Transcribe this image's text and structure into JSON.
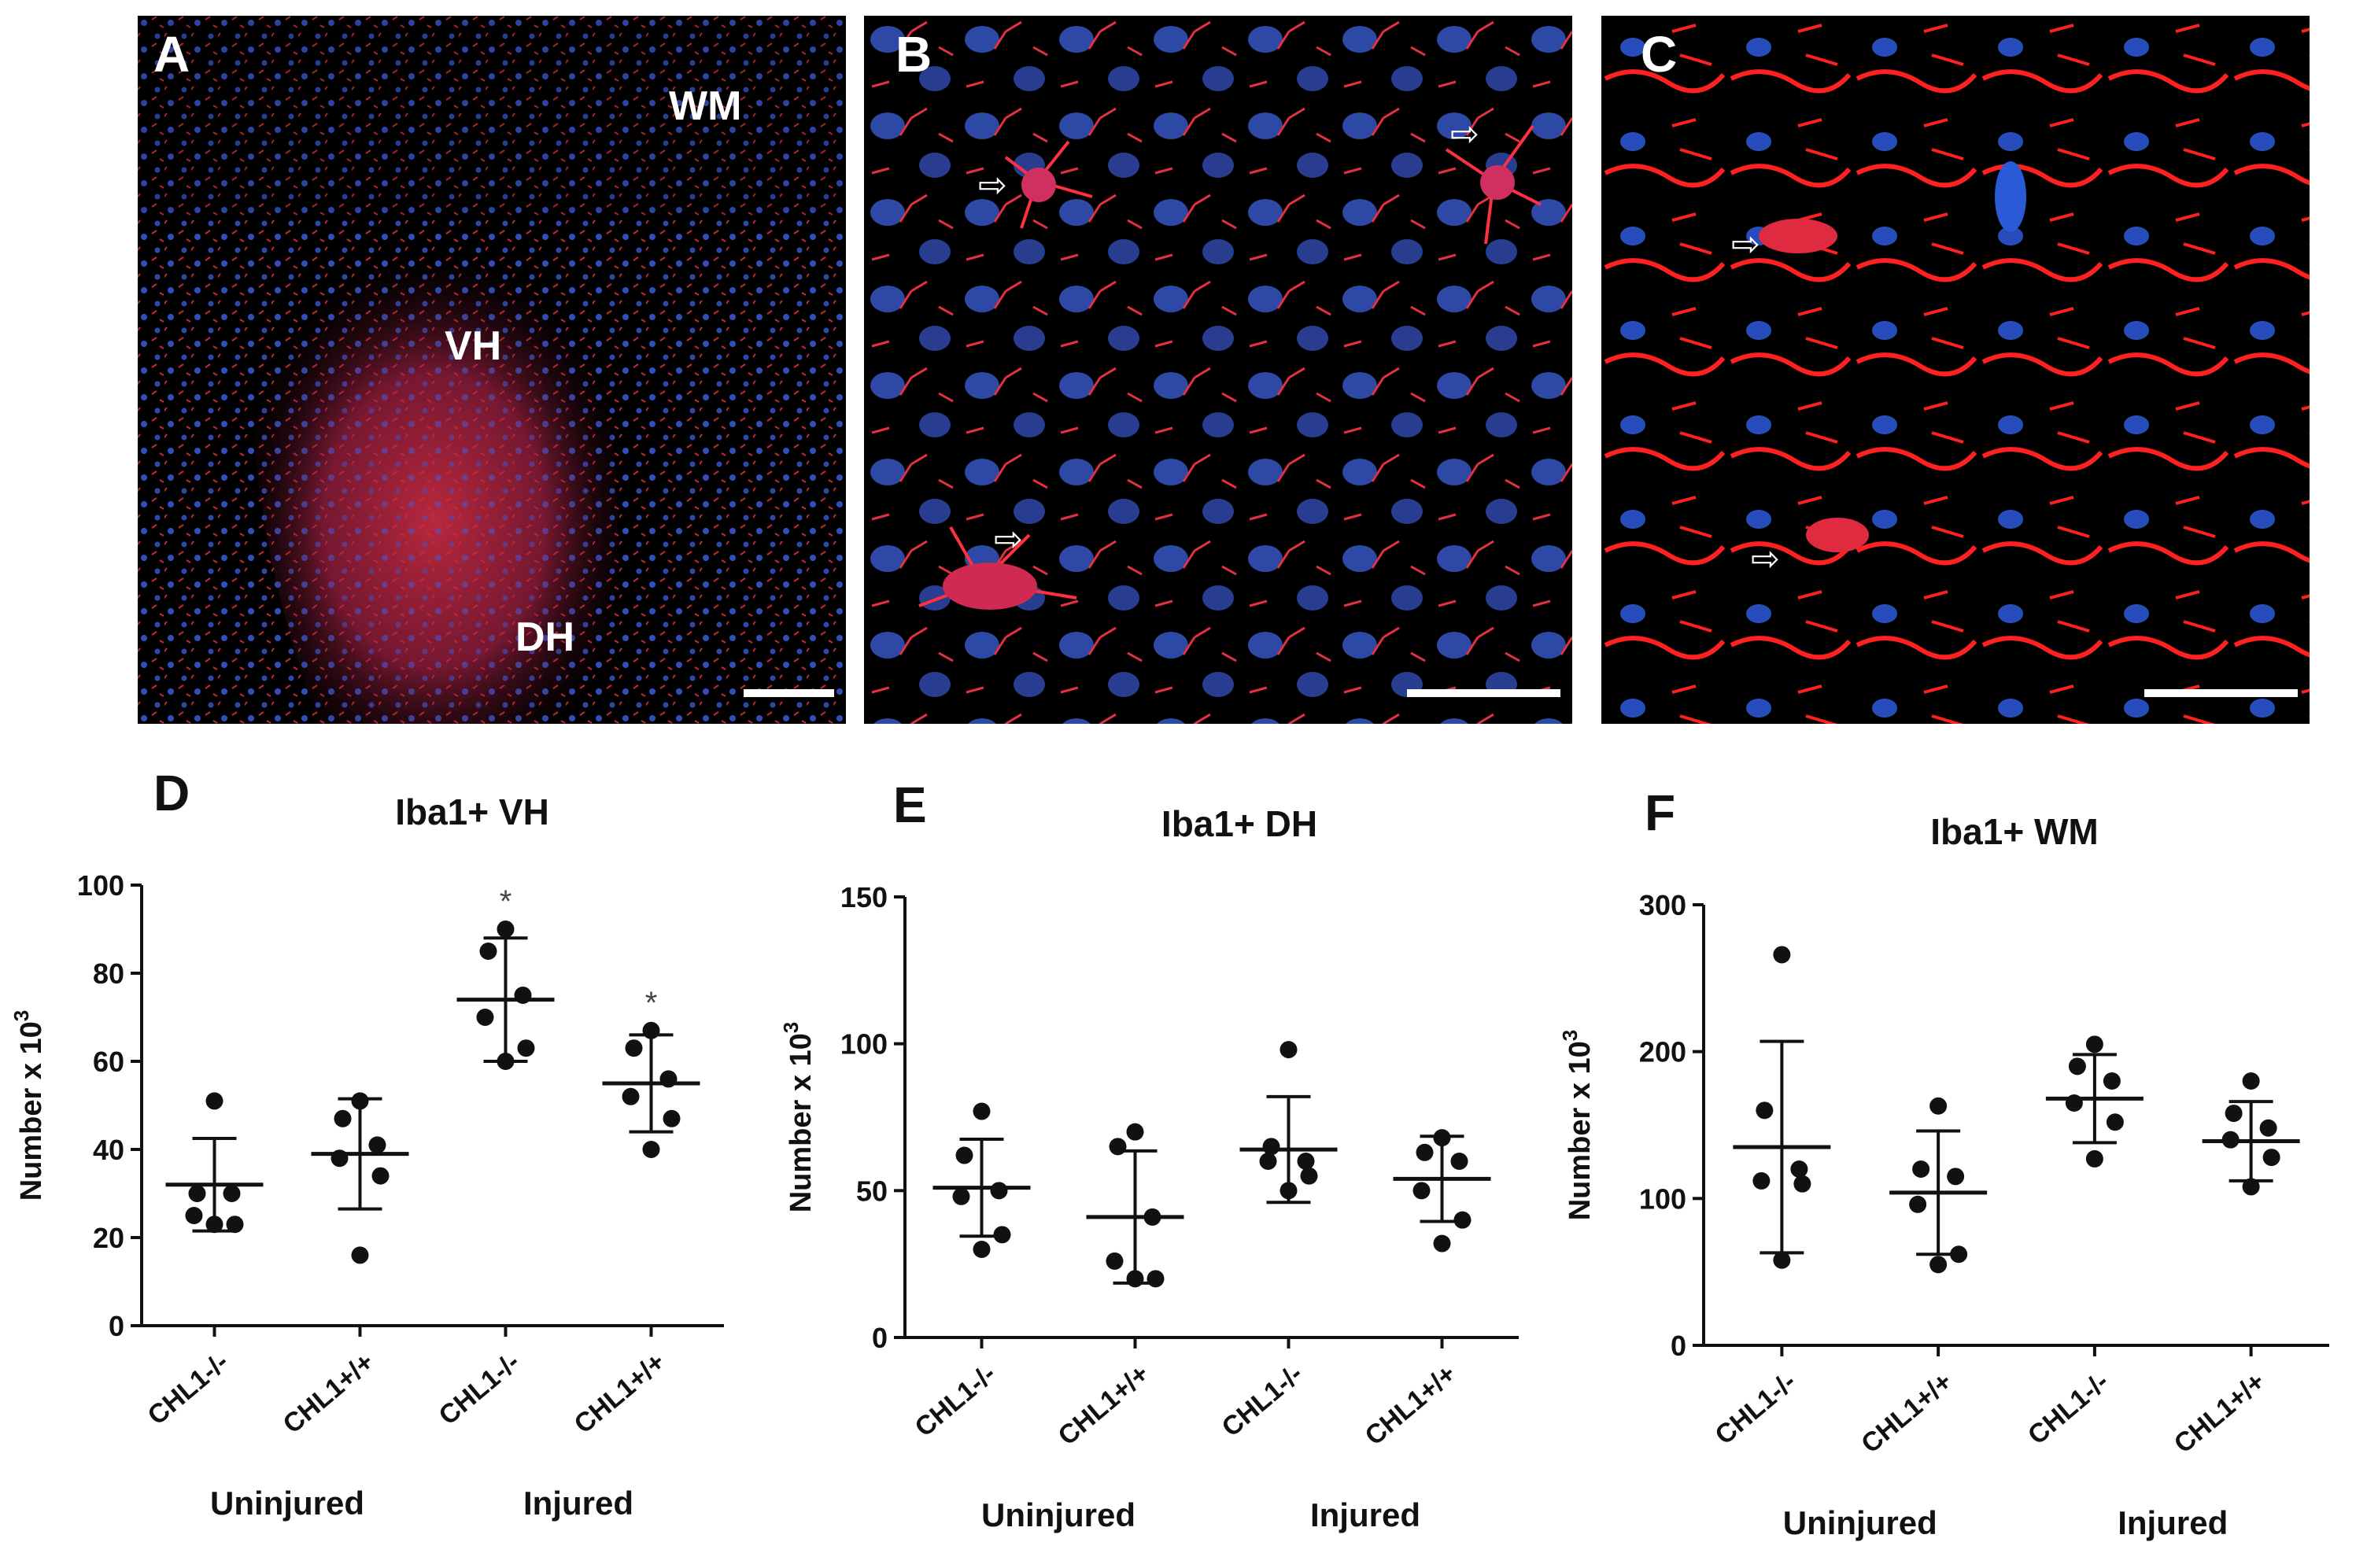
{
  "panels": [
    {
      "letter": "A",
      "regions": [
        "WM",
        "VH",
        "DH"
      ]
    },
    {
      "letter": "B",
      "regions": []
    },
    {
      "letter": "C",
      "regions": []
    }
  ],
  "colors": {
    "stain_red": "#ff2a2a",
    "nuclei_blue": "#3050d0",
    "background": "#000000"
  },
  "chart_data": [
    {
      "panel": "D",
      "type": "scatter",
      "title": "Iba1+ VH",
      "ylabel": "Number x 10",
      "ylabel_sup": "3",
      "yticks": [
        "0",
        "20",
        "40",
        "60",
        "80",
        "100"
      ],
      "ylim": [
        0,
        100
      ],
      "categories": [
        "CHL1-/-",
        "CHL1+/+",
        "CHL1-/-",
        "CHL1+/+"
      ],
      "groups": [
        "Uninjured",
        "Injured"
      ],
      "significance": [
        "",
        "",
        "*",
        "*"
      ],
      "points": [
        [
          51,
          30,
          30,
          25,
          23,
          23
        ],
        [
          51,
          47,
          41,
          38,
          34,
          16
        ],
        [
          90,
          85,
          75,
          70,
          63,
          60
        ],
        [
          67,
          63,
          56,
          52,
          47,
          40
        ]
      ],
      "means": [
        32,
        39,
        74,
        55
      ],
      "sd": [
        10.5,
        12.5,
        14,
        11
      ]
    },
    {
      "panel": "E",
      "type": "scatter",
      "title": "Iba1+ DH",
      "ylabel": "Number x 10",
      "ylabel_sup": "3",
      "yticks": [
        "0",
        "50",
        "100",
        "150"
      ],
      "ylim": [
        0,
        150
      ],
      "categories": [
        "CHL1-/-",
        "CHL1+/+",
        "CHL1-/-",
        "CHL1+/+"
      ],
      "groups": [
        "Uninjured",
        "Injured"
      ],
      "significance": [
        "",
        "",
        "",
        ""
      ],
      "points": [
        [
          77,
          62,
          50,
          48,
          35,
          30
        ],
        [
          70,
          65,
          41,
          26,
          20,
          20
        ],
        [
          98,
          65,
          60,
          60,
          55,
          50
        ],
        [
          68,
          63,
          60,
          50,
          40,
          32
        ]
      ],
      "means": [
        51,
        41,
        64,
        54
      ],
      "sd": [
        16.5,
        22.5,
        18,
        14.5
      ]
    },
    {
      "panel": "F",
      "type": "scatter",
      "title": "Iba1+ WM",
      "ylabel": "Number x 10",
      "ylabel_sup": "3",
      "yticks": [
        "0",
        "100",
        "200",
        "300"
      ],
      "ylim": [
        0,
        300
      ],
      "categories": [
        "CHL1-/-",
        "CHL1+/+",
        "CHL1-/-",
        "CHL1+/+"
      ],
      "groups": [
        "Uninjured",
        "Injured"
      ],
      "significance": [
        "",
        "",
        "",
        ""
      ],
      "points": [
        [
          266,
          160,
          120,
          112,
          110,
          58
        ],
        [
          163,
          120,
          115,
          96,
          62,
          55
        ],
        [
          205,
          190,
          180,
          165,
          152,
          127
        ],
        [
          180,
          158,
          148,
          140,
          128,
          108
        ]
      ],
      "means": [
        135,
        104,
        168,
        139
      ],
      "sd": [
        72,
        42,
        30,
        27
      ]
    }
  ]
}
